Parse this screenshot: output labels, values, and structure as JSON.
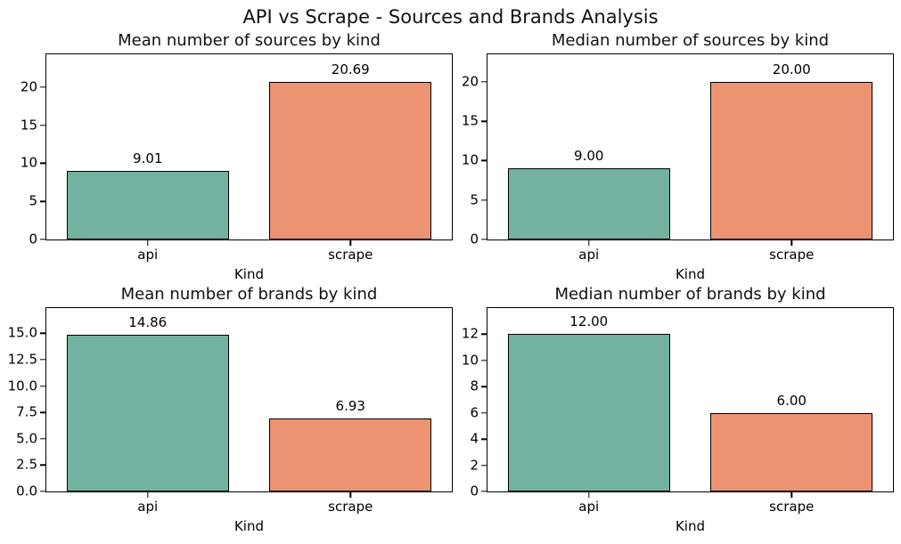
{
  "figure": {
    "suptitle": "API vs Scrape - Sources and Brands Analysis",
    "background": "#ffffff"
  },
  "colors": {
    "api_bar": "#71b2a0",
    "scrape_bar": "#ec9372",
    "bar_edge": "#000000",
    "text": "#000000"
  },
  "chart_data": [
    {
      "type": "bar",
      "title": "Mean number of sources by kind",
      "xlabel": "Kind",
      "ylabel": "",
      "categories": [
        "api",
        "scrape"
      ],
      "values": [
        9.01,
        20.69
      ],
      "bar_labels": [
        "9.01",
        "20.69"
      ],
      "bar_colors": [
        "#71b2a0",
        "#ec9372"
      ],
      "yticks": [
        0,
        5,
        10,
        15,
        20
      ],
      "ytick_labels": [
        "0",
        "5",
        "10",
        "15",
        "20"
      ],
      "ylim": [
        0,
        24.3
      ],
      "grid": false,
      "legend_position": "none"
    },
    {
      "type": "bar",
      "title": "Median number of sources by kind",
      "xlabel": "Kind",
      "ylabel": "",
      "categories": [
        "api",
        "scrape"
      ],
      "values": [
        9.0,
        20.0
      ],
      "bar_labels": [
        "9.00",
        "20.00"
      ],
      "bar_colors": [
        "#71b2a0",
        "#ec9372"
      ],
      "yticks": [
        0,
        5,
        10,
        15,
        20
      ],
      "ytick_labels": [
        "0",
        "5",
        "10",
        "15",
        "20"
      ],
      "ylim": [
        0,
        23.5
      ],
      "grid": false,
      "legend_position": "none"
    },
    {
      "type": "bar",
      "title": "Mean number of brands by kind",
      "xlabel": "Kind",
      "ylabel": "",
      "categories": [
        "api",
        "scrape"
      ],
      "values": [
        14.86,
        6.93
      ],
      "bar_labels": [
        "14.86",
        "6.93"
      ],
      "bar_colors": [
        "#71b2a0",
        "#ec9372"
      ],
      "yticks": [
        0,
        2.5,
        5,
        7.5,
        10,
        12.5,
        15
      ],
      "ytick_labels": [
        "0.0",
        "2.5",
        "5.0",
        "7.5",
        "10.0",
        "12.5",
        "15.0"
      ],
      "ylim": [
        0,
        17.4
      ],
      "grid": false,
      "legend_position": "none"
    },
    {
      "type": "bar",
      "title": "Median number of brands by kind",
      "xlabel": "Kind",
      "ylabel": "",
      "categories": [
        "api",
        "scrape"
      ],
      "values": [
        12.0,
        6.0
      ],
      "bar_labels": [
        "12.00",
        "6.00"
      ],
      "bar_colors": [
        "#71b2a0",
        "#ec9372"
      ],
      "yticks": [
        0,
        2,
        4,
        6,
        8,
        10,
        12
      ],
      "ytick_labels": [
        "0",
        "2",
        "4",
        "6",
        "8",
        "10",
        "12"
      ],
      "ylim": [
        0,
        14.0
      ],
      "grid": false,
      "legend_position": "none"
    }
  ]
}
